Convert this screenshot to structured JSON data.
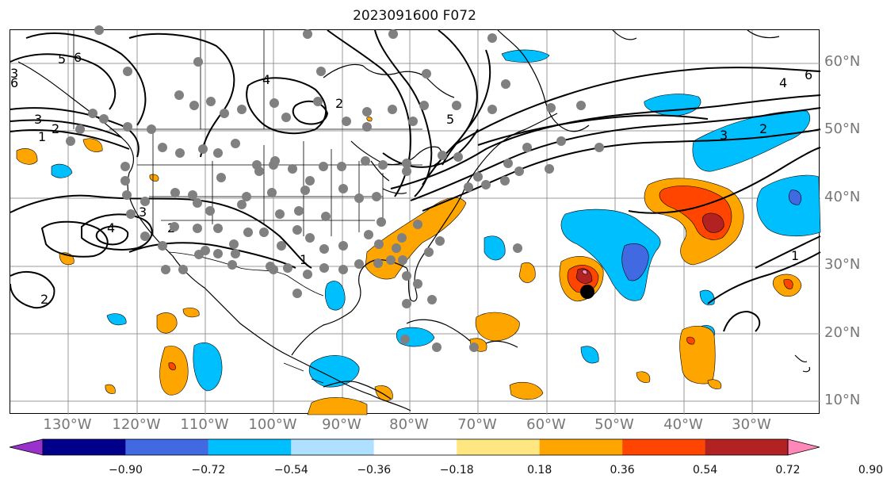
{
  "title": "2023091600 F072",
  "lat_labels": [
    "60°N",
    "50°N",
    "40°N",
    "30°N",
    "20°N",
    "10°N"
  ],
  "lon_labels": [
    "130°W",
    "120°W",
    "110°W",
    "100°W",
    "90°W",
    "80°W",
    "70°W",
    "60°W",
    "50°W",
    "40°W",
    "30°W"
  ],
  "colorbar": {
    "colors": [
      "#9932cc",
      "#00008b",
      "#4169e1",
      "#00bfff",
      "#b0e0ff",
      "#ffffff",
      "#ffe680",
      "#ffa500",
      "#ff4500",
      "#b22222",
      "#ff88b8"
    ],
    "tick_labels": [
      "−0.90",
      "−0.72",
      "−0.54",
      "−0.36",
      "−0.18",
      "0.18",
      "0.36",
      "0.54",
      "0.72",
      "0.90"
    ]
  },
  "contour_labels": [
    "5",
    "6",
    "3",
    "6",
    "3",
    "2",
    "1",
    "4",
    "2",
    "5",
    "4",
    "6",
    "3",
    "2",
    "3",
    "4",
    "2",
    "1",
    "2",
    "1"
  ],
  "fill_colors": {
    "light_blue": "#00bfff",
    "mid_blue": "#4169e1",
    "orange": "#ffa500",
    "red_orange": "#ff4500",
    "dark_red": "#b22222",
    "pink": "#ff88b8"
  }
}
